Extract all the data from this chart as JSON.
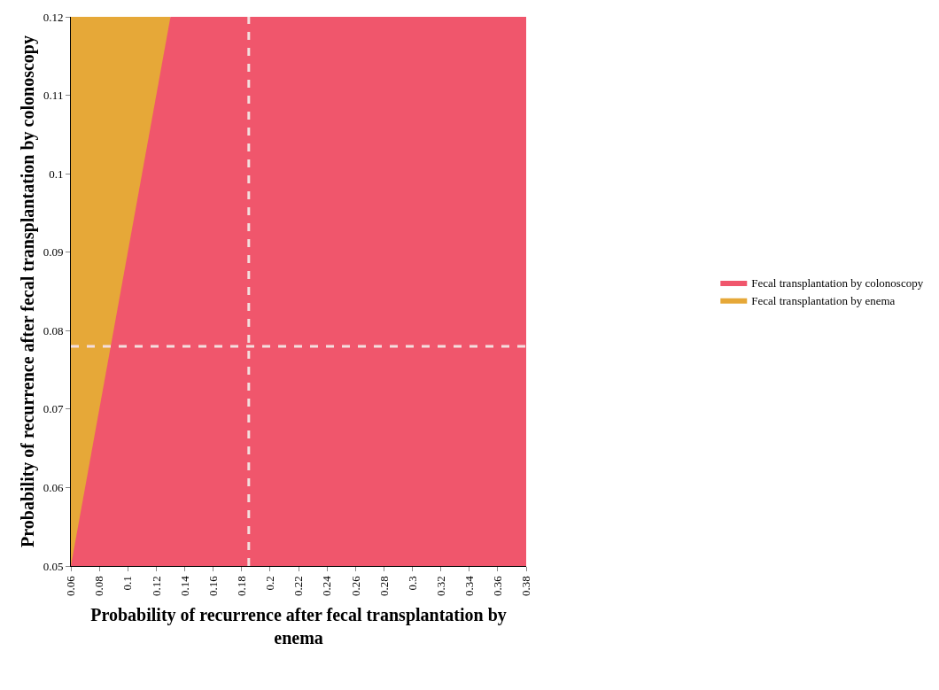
{
  "chart_data": {
    "type": "area",
    "xlabel": "Probability of recurrence after fecal transplantation by enema",
    "ylabel": "Probability of recurrence after fecal transplantation by colonoscopy",
    "series": [
      {
        "name": "Fecal transplantation by colonoscopy",
        "color": "#f0566c",
        "x": [
          0.06,
          0.13,
          0.38
        ],
        "values": [
          0.05,
          0.12,
          0.12
        ]
      },
      {
        "name": "Fecal transplantation by enema",
        "color": "#e6a838",
        "x": [
          0.06,
          0.13
        ],
        "values": [
          0.12,
          0.12
        ]
      }
    ],
    "xlim": [
      0.06,
      0.38
    ],
    "xticks": [
      0.06,
      0.08,
      0.1,
      0.12,
      0.14,
      0.16,
      0.18,
      0.2,
      0.22,
      0.24,
      0.26,
      0.28,
      0.3,
      0.32,
      0.34,
      0.36,
      0.38
    ],
    "ylim": [
      0.05,
      0.12
    ],
    "yticks": [
      0.05,
      0.06,
      0.07,
      0.08,
      0.09,
      0.1,
      0.11,
      0.12
    ],
    "ref_lines": [
      {
        "axis": "x",
        "value": 0.185,
        "color": "#f3dede",
        "line_style": "dashed"
      },
      {
        "axis": "y",
        "value": 0.078,
        "color": "#f3dede",
        "line_style": "dashed"
      }
    ],
    "legend": "right"
  }
}
